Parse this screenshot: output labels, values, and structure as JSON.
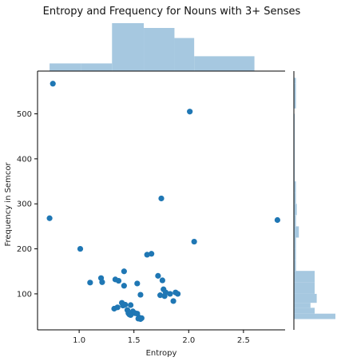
{
  "chart_data": {
    "type": "scatter",
    "title": "Entropy and Frequency for Nouns with 3+ Senses",
    "xlabel": "Entropy",
    "ylabel": "Frequency in Semcor",
    "xlim": [
      0.62,
      2.88
    ],
    "ylim": [
      20,
      595
    ],
    "x_ticks": [
      1.0,
      1.5,
      2.0,
      2.5
    ],
    "x_tick_labels": [
      "1.0",
      "1.5",
      "2.0",
      "2.5"
    ],
    "y_ticks": [
      100,
      200,
      300,
      400,
      500
    ],
    "y_tick_labels": [
      "100",
      "200",
      "300",
      "400",
      "500"
    ],
    "grid": false,
    "point_color": "#1f77b4",
    "hist_color": "#a6c8e0",
    "points": [
      [
        0.76,
        567
      ],
      [
        0.73,
        268
      ],
      [
        1.01,
        200
      ],
      [
        2.01,
        505
      ],
      [
        1.75,
        312
      ],
      [
        2.81,
        264
      ],
      [
        2.05,
        216
      ],
      [
        1.62,
        187
      ],
      [
        1.66,
        189
      ],
      [
        1.41,
        150
      ],
      [
        1.2,
        135
      ],
      [
        1.1,
        125
      ],
      [
        1.21,
        126
      ],
      [
        1.33,
        132
      ],
      [
        1.36,
        129
      ],
      [
        1.41,
        118
      ],
      [
        1.53,
        123
      ],
      [
        1.72,
        140
      ],
      [
        1.76,
        130
      ],
      [
        1.56,
        98
      ],
      [
        1.74,
        97
      ],
      [
        1.77,
        110
      ],
      [
        1.79,
        103
      ],
      [
        1.83,
        100
      ],
      [
        1.88,
        103
      ],
      [
        1.9,
        100
      ],
      [
        1.78,
        95
      ],
      [
        1.86,
        84
      ],
      [
        1.32,
        67
      ],
      [
        1.35,
        70
      ],
      [
        1.39,
        80
      ],
      [
        1.4,
        74
      ],
      [
        1.42,
        76
      ],
      [
        1.44,
        64
      ],
      [
        1.47,
        75
      ],
      [
        1.45,
        57
      ],
      [
        1.47,
        53
      ],
      [
        1.49,
        61
      ],
      [
        1.51,
        57
      ],
      [
        1.53,
        56
      ],
      [
        1.55,
        47
      ],
      [
        1.56,
        44
      ],
      [
        1.46,
        54
      ],
      [
        1.54,
        45
      ],
      [
        1.57,
        46
      ]
    ],
    "x_hist": {
      "bins": [
        0.73,
        1.02,
        1.3,
        1.59,
        1.87,
        2.05,
        2.6,
        2.81
      ],
      "heights": [
        0.16,
        0.16,
        1.0,
        0.9,
        0.69,
        0.31,
        0.0,
        0.08
      ]
    },
    "y_hist": {
      "bins": [
        44,
        56,
        69,
        80,
        100,
        125,
        151,
        175,
        200,
        225,
        250,
        275,
        300,
        325,
        350,
        500,
        512,
        567,
        580
      ],
      "heights": [
        1.0,
        0.5,
        0.4,
        0.55,
        0.5,
        0.5,
        0.05,
        0.05,
        0.05,
        0.12,
        0.05,
        0.07,
        0.05,
        0.05,
        0.02,
        0.0,
        0.05,
        0.05
      ]
    }
  }
}
